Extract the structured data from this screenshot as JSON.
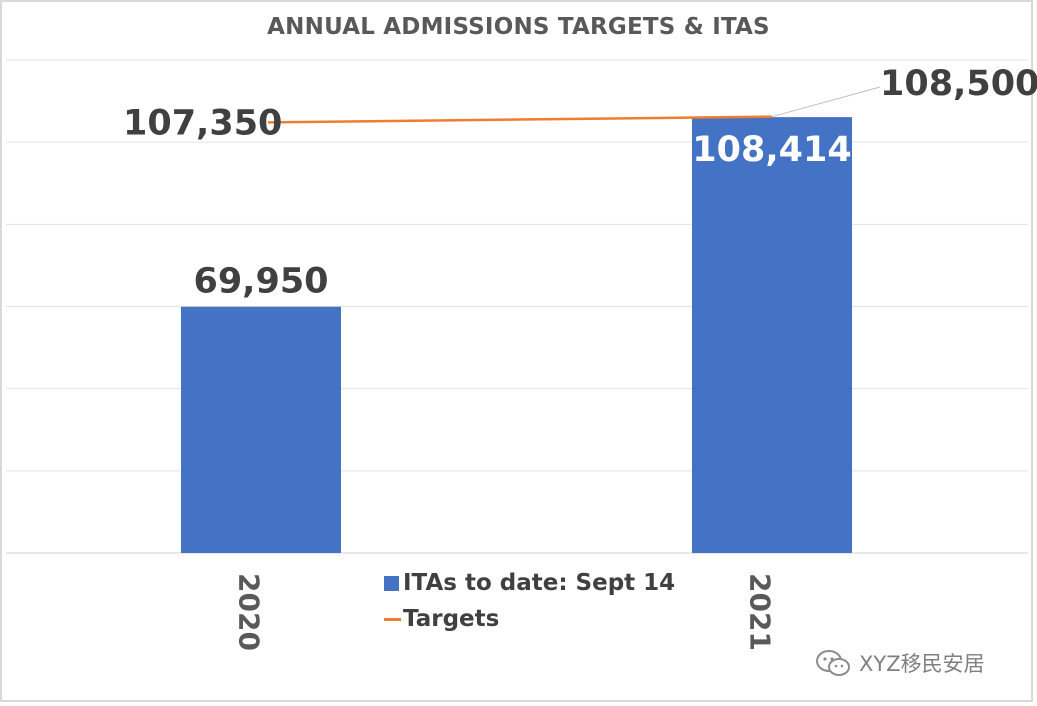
{
  "chart_data": {
    "type": "bar",
    "title": "ANNUAL ADMISSIONS TARGETS & ITAS",
    "categories": [
      "2020",
      "2021"
    ],
    "series": [
      {
        "name": "ITAs to date: Sept 14",
        "kind": "bar",
        "color": "#4472c4",
        "values": [
          69950,
          108414
        ],
        "labels": [
          "69,950",
          "108,414"
        ]
      },
      {
        "name": "Targets",
        "kind": "line",
        "color": "#ed7d31",
        "values": [
          107350,
          108500
        ],
        "labels": [
          "107,350",
          "108,500"
        ]
      }
    ],
    "xlabel": "",
    "ylabel": "",
    "ylim": [
      20000,
      120000
    ],
    "grid": true,
    "legend_position": "bottom"
  },
  "legend": {
    "bar_label": "ITAs to date: Sept 14",
    "line_label": "Targets"
  },
  "watermark": {
    "text": "XYZ移民安居",
    "icon": "wechat-icon"
  }
}
